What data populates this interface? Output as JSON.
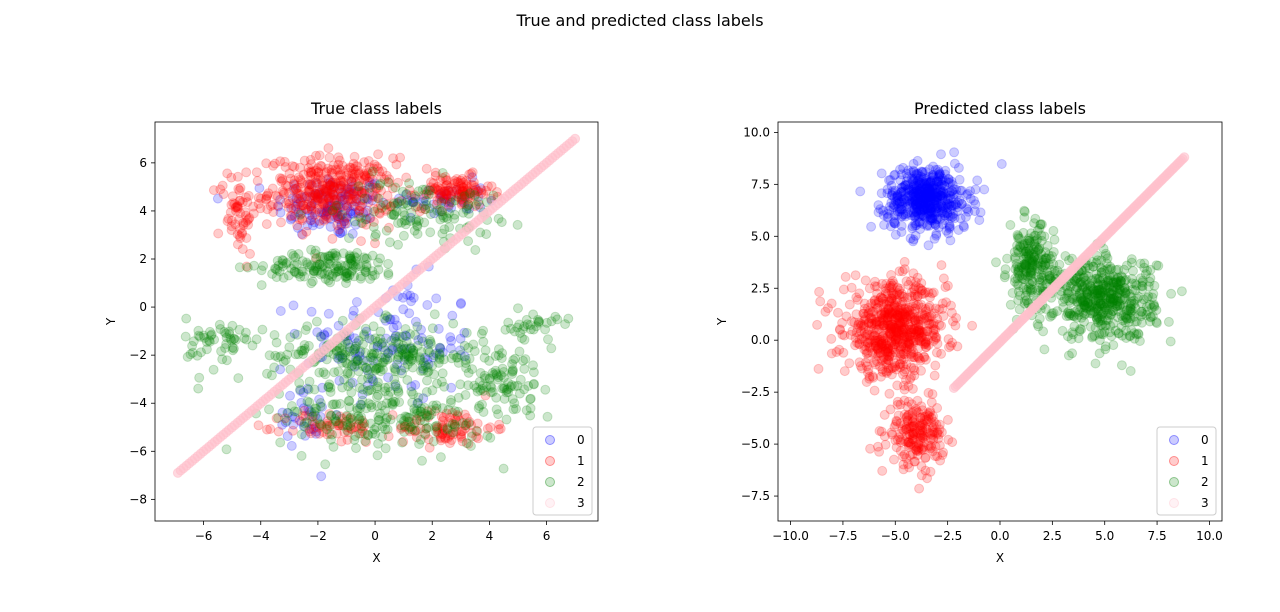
{
  "figure": {
    "suptitle": "True and predicted class labels"
  },
  "chart_data": [
    {
      "type": "scatter",
      "title": "True class labels",
      "xlabel": "X",
      "ylabel": "Y",
      "xlim": [
        -7.7,
        7.8
      ],
      "ylim": [
        -8.9,
        7.7
      ],
      "xticks": [
        -6,
        -4,
        -2,
        0,
        2,
        4,
        6
      ],
      "yticks": [
        -8,
        -6,
        -4,
        -2,
        0,
        2,
        4,
        6
      ],
      "grid": false,
      "legend": {
        "placement": "lower-right",
        "labels": [
          "0",
          "1",
          "2",
          "3"
        ]
      },
      "series": [
        {
          "name": "0",
          "color": "#0000ff",
          "alpha": 0.2,
          "clusters": [
            {
              "center": [
                -1.5,
                4.2
              ],
              "spread": [
                1.8,
                1.2
              ],
              "count": 130
            },
            {
              "center": [
                0.5,
                -1.5
              ],
              "spread": [
                2.8,
                2.4
              ],
              "count": 120
            },
            {
              "center": [
                2.5,
                4.5
              ],
              "spread": [
                1.2,
                0.7
              ],
              "count": 40
            },
            {
              "center": [
                -2.5,
                -4.5
              ],
              "spread": [
                1.0,
                1.0
              ],
              "count": 30
            }
          ]
        },
        {
          "name": "1",
          "color": "#ff0000",
          "alpha": 0.2,
          "clusters": [
            {
              "center": [
                -1.5,
                4.8
              ],
              "spread": [
                2.0,
                1.3
              ],
              "count": 380
            },
            {
              "center": [
                2.8,
                4.8
              ],
              "spread": [
                1.2,
                0.6
              ],
              "count": 120
            },
            {
              "center": [
                -4.8,
                4.0
              ],
              "spread": [
                0.6,
                1.6
              ],
              "count": 60
            },
            {
              "center": [
                2.5,
                -5.0
              ],
              "spread": [
                1.5,
                0.7
              ],
              "count": 90
            },
            {
              "center": [
                -1.5,
                -5.0
              ],
              "spread": [
                1.5,
                0.6
              ],
              "count": 60
            }
          ]
        },
        {
          "name": "2",
          "color": "#008000",
          "alpha": 0.2,
          "clusters": [
            {
              "center": [
                -1.5,
                1.7
              ],
              "spread": [
                2.2,
                0.6
              ],
              "count": 150
            },
            {
              "center": [
                0.0,
                -2.0
              ],
              "spread": [
                3.5,
                1.2
              ],
              "count": 260
            },
            {
              "center": [
                0.5,
                -4.5
              ],
              "spread": [
                3.5,
                1.4
              ],
              "count": 220
            },
            {
              "center": [
                1.5,
                4.0
              ],
              "spread": [
                2.5,
                1.2
              ],
              "count": 120
            },
            {
              "center": [
                4.5,
                -3.0
              ],
              "spread": [
                1.2,
                1.3
              ],
              "count": 80
            },
            {
              "center": [
                -5.5,
                -1.5
              ],
              "spread": [
                1.0,
                1.0
              ],
              "count": 50
            },
            {
              "center": [
                5.5,
                -0.8
              ],
              "spread": [
                0.8,
                0.5
              ],
              "count": 30
            }
          ]
        },
        {
          "name": "3",
          "color": "#ffc0cb",
          "alpha": 0.2,
          "line": {
            "from": [
              -6.9,
              -6.9
            ],
            "to": [
              7.0,
              7.0
            ]
          }
        }
      ]
    },
    {
      "type": "scatter",
      "title": "Predicted class labels",
      "xlabel": "X",
      "ylabel": "Y",
      "xlim": [
        -10.6,
        10.6
      ],
      "ylim": [
        -8.7,
        10.5
      ],
      "xticks": [
        -10.0,
        -7.5,
        -5.0,
        -2.5,
        0.0,
        2.5,
        5.0,
        7.5,
        10.0
      ],
      "xtick_labels": [
        "−10.0",
        "−7.5",
        "−5.0",
        "−2.5",
        "0.0",
        "2.5",
        "5.0",
        "7.5",
        "10.0"
      ],
      "yticks": [
        -7.5,
        -5.0,
        -2.5,
        0.0,
        2.5,
        5.0,
        7.5,
        10.0
      ],
      "ytick_labels": [
        "−7.5",
        "−5.0",
        "−2.5",
        "0.0",
        "2.5",
        "5.0",
        "7.5",
        "10.0"
      ],
      "grid": false,
      "legend": {
        "placement": "lower-right",
        "labels": [
          "0",
          "1",
          "2",
          "3"
        ]
      },
      "series": [
        {
          "name": "0",
          "color": "#0000ff",
          "alpha": 0.2,
          "clusters": [
            {
              "center": [
                -3.5,
                6.8
              ],
              "spread": [
                1.8,
                1.4
              ],
              "count": 520
            }
          ]
        },
        {
          "name": "1",
          "color": "#ff0000",
          "alpha": 0.2,
          "clusters": [
            {
              "center": [
                -5.0,
                0.5
              ],
              "spread": [
                2.2,
                2.0
              ],
              "count": 650
            },
            {
              "center": [
                -4.0,
                -4.5
              ],
              "spread": [
                1.2,
                1.4
              ],
              "count": 200
            }
          ]
        },
        {
          "name": "2",
          "color": "#008000",
          "alpha": 0.2,
          "clusters": [
            {
              "center": [
                5.0,
                2.0
              ],
              "spread": [
                2.2,
                1.8
              ],
              "count": 500
            },
            {
              "center": [
                1.5,
                3.5
              ],
              "spread": [
                1.0,
                1.8
              ],
              "count": 220
            }
          ]
        },
        {
          "name": "3",
          "color": "#ffc0cb",
          "alpha": 0.2,
          "line": {
            "from": [
              -2.2,
              -2.3
            ],
            "to": [
              8.8,
              8.8
            ]
          }
        }
      ]
    }
  ]
}
